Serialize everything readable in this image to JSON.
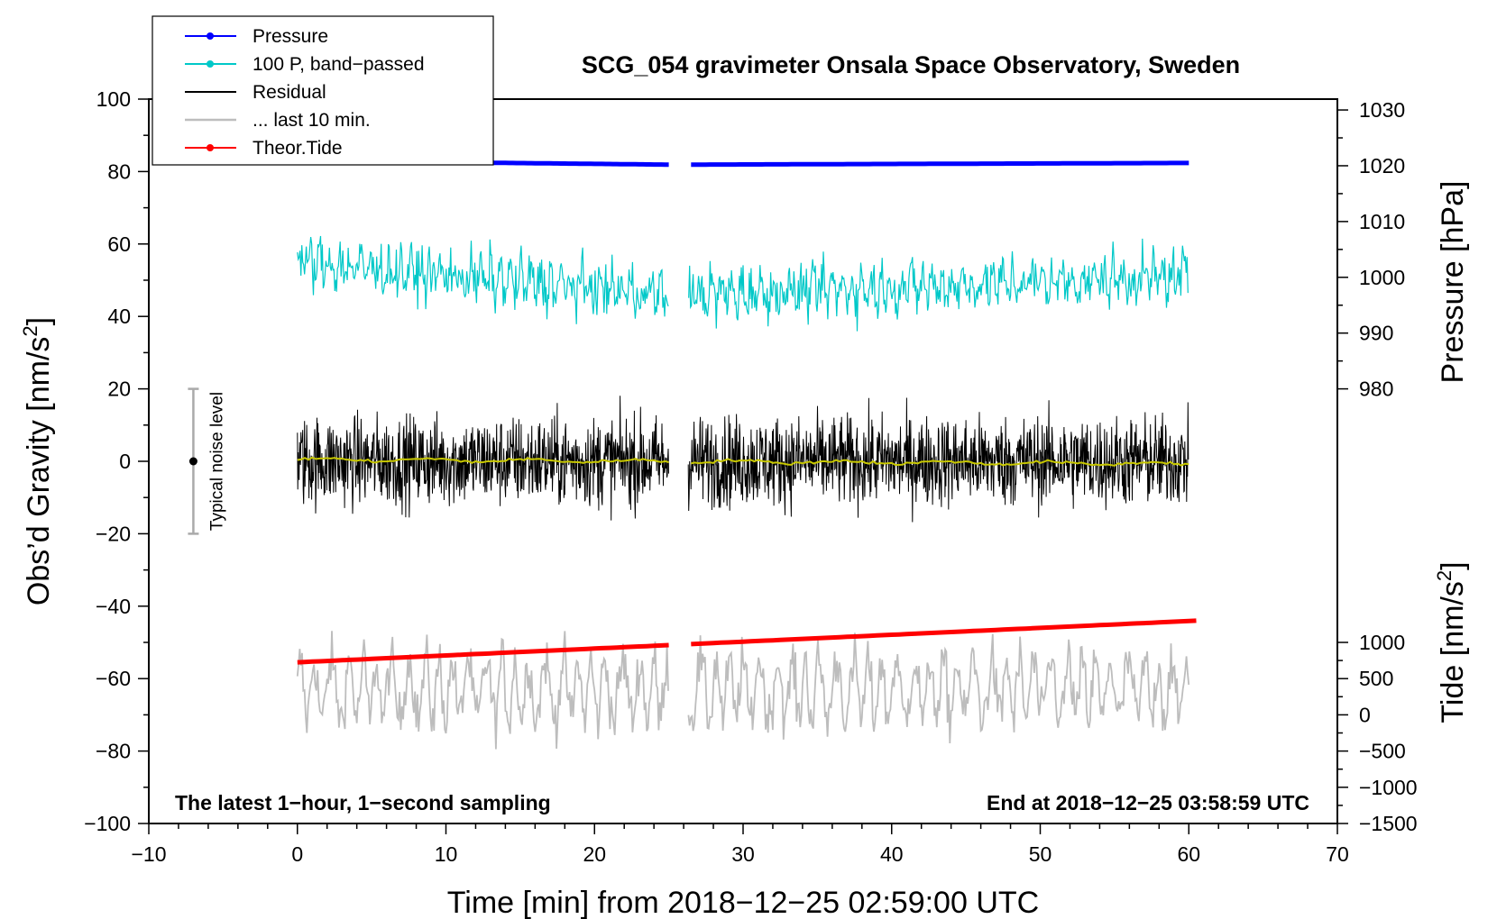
{
  "chart_data": {
    "type": "line",
    "title": "SCG_054 gravimeter Onsala Space Observatory, Sweden",
    "xlabel": "Time [min] from 2018−12−25 02:59:00 UTC",
    "ylabel": "Obs’d Gravity [nm/s",
    "ylabel_sup": "2",
    "ylabel_end": "]",
    "y2label_pressure": "Pressure [hPa]",
    "y2label_tide": "Tide [nm/s",
    "y2label_tide_sup": "2",
    "y2label_tide_end": "]",
    "xlim": [
      -10,
      70
    ],
    "ylim": [
      -100,
      100
    ],
    "xticks": [
      -10,
      0,
      10,
      20,
      30,
      40,
      50,
      60,
      70
    ],
    "xtick_labels": [
      "−10",
      "0",
      "10",
      "20",
      "30",
      "40",
      "50",
      "60",
      "70"
    ],
    "yticks": [
      -100,
      -80,
      -60,
      -40,
      -20,
      0,
      20,
      40,
      60,
      80,
      100
    ],
    "ytick_labels": [
      "−100",
      "−80",
      "−60",
      "−40",
      "−20",
      "0",
      "20",
      "40",
      "60",
      "80",
      "100"
    ],
    "pressure_axis": {
      "ticks": [
        980,
        990,
        1000,
        1010,
        1020,
        1030
      ],
      "tick_labels": [
        "980",
        "990",
        "1000",
        "1010",
        "1020",
        "1030"
      ],
      "gravity_at_980": 20,
      "gravity_per_hPa": 1.54
    },
    "tide_axis": {
      "ticks": [
        -1500,
        -1000,
        -500,
        0,
        500,
        1000
      ],
      "tick_labels": [
        "−1500",
        "−1000",
        "−500",
        "0",
        "500",
        "1000"
      ],
      "gravity_at_minus1500": -100,
      "gravity_per_nms2": 0.02
    },
    "gap_minutes": [
      25,
      26.3
    ],
    "series": [
      {
        "name": "Pressure",
        "color": "#0000ff",
        "hPa_start": 1020.9,
        "hPa_mid": 1020.2,
        "hPa_end": 1020.5
      },
      {
        "name": "100 P, band−passed",
        "color": "#00c8c8",
        "base_start": 55,
        "base_mid": 46,
        "base_end": 51,
        "amplitude": 6
      },
      {
        "name": "Residual",
        "color": "#000000",
        "base": 0,
        "amplitude": 10
      },
      {
        "name": "... last 10 min.",
        "color": "#bdbdbd",
        "base": -63,
        "amplitude": 10
      },
      {
        "name": "Theor.Tide",
        "color": "#ff0000",
        "start": -55.5,
        "end": -44
      },
      {
        "name": "Mean",
        "color": "#c8c800",
        "base": 0.5
      }
    ],
    "legend": [
      {
        "label": "Pressure",
        "color": "#0000ff",
        "marker": true
      },
      {
        "label": "100 P, band−passed",
        "color": "#00c8c8",
        "marker": true
      },
      {
        "label": "Residual",
        "color": "#000000",
        "marker": false
      },
      {
        "label": "... last 10 min.",
        "color": "#bdbdbd",
        "marker": false
      },
      {
        "label": "Theor.Tide",
        "color": "#ff0000",
        "marker": true
      }
    ],
    "legend_position": "top-left",
    "noise_level": {
      "label": "Typical noise level",
      "x": -7,
      "low": -20,
      "high": 20
    },
    "annotation_left": "The latest 1−hour, 1−second sampling",
    "annotation_right": "End at 2018−12−25 03:58:59 UTC"
  }
}
